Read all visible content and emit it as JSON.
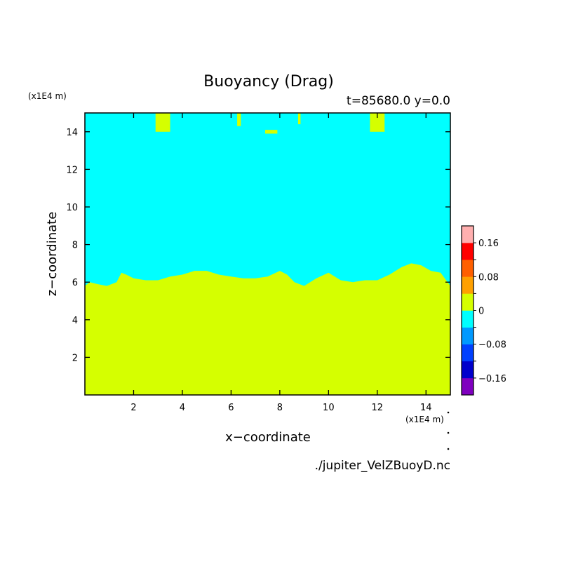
{
  "chart_data": {
    "type": "heatmap",
    "title": "Buoyancy (Drag)",
    "subtitle": "t=85680.0 y=0.0",
    "xlabel": "x−coordinate",
    "ylabel": "z−coordinate",
    "x_unit": "(x1E4 m)",
    "z_unit": "(x1E4 m)",
    "source_file": "./jupiter_VelZBuoyD.nc",
    "xlim": [
      0,
      15
    ],
    "ylim": [
      0,
      15
    ],
    "x_ticks": [
      2,
      4,
      6,
      8,
      10,
      12,
      14
    ],
    "y_ticks": [
      2,
      4,
      6,
      8,
      10,
      12,
      14
    ],
    "grid": false,
    "legend_position": "right",
    "colorbar": {
      "levels": [
        -0.2,
        -0.16,
        -0.12,
        -0.08,
        -0.04,
        0,
        0.04,
        0.08,
        0.12,
        0.16,
        0.2
      ],
      "colors": [
        "#7f00bf",
        "#0000cc",
        "#0040ff",
        "#0099ff",
        "#00ffff",
        "#d5ff00",
        "#ffa000",
        "#ff5f00",
        "#ff0000",
        "#ffafaf"
      ],
      "tick_labels": [
        "−0.16",
        "−0.08",
        "0",
        "0.08",
        "0.16"
      ],
      "tick_values": [
        -0.16,
        -0.08,
        0,
        0.08,
        0.16
      ]
    },
    "background_region": {
      "label": "-0.04 to 0",
      "color": "#00ffff",
      "z_range": [
        6,
        15
      ]
    },
    "lower_region": {
      "label": "0 to 0.04",
      "color": "#d5ff00"
    },
    "boundary": {
      "x": [
        0,
        0.2,
        0.5,
        0.9,
        1.3,
        1.5,
        1.7,
        2.0,
        2.5,
        3.0,
        3.5,
        4.0,
        4.5,
        5.0,
        5.5,
        6.0,
        6.5,
        7.0,
        7.5,
        8.0,
        8.3,
        8.6,
        9.0,
        9.5,
        10.0,
        10.5,
        11.0,
        11.5,
        12.0,
        12.5,
        13.0,
        13.4,
        13.8,
        14.2,
        14.6,
        15.0
      ],
      "z": [
        5.8,
        6.0,
        5.9,
        5.8,
        6.0,
        6.5,
        6.4,
        6.2,
        6.1,
        6.1,
        6.3,
        6.4,
        6.6,
        6.6,
        6.4,
        6.3,
        6.2,
        6.2,
        6.3,
        6.6,
        6.4,
        6.0,
        5.8,
        6.2,
        6.5,
        6.1,
        6.0,
        6.1,
        6.1,
        6.4,
        6.8,
        7.0,
        6.9,
        6.6,
        6.5,
        5.8
      ]
    },
    "top_patches": [
      {
        "x0": 2.9,
        "x1": 3.5,
        "z0": 14.0,
        "z1": 15.0
      },
      {
        "x0": 6.25,
        "x1": 6.4,
        "z0": 14.3,
        "z1": 15.0
      },
      {
        "x0": 7.4,
        "x1": 7.9,
        "z0": 13.9,
        "z1": 14.1
      },
      {
        "x0": 8.75,
        "x1": 8.85,
        "z0": 14.4,
        "z1": 15.0
      },
      {
        "x0": 11.7,
        "x1": 12.3,
        "z0": 14.0,
        "z1": 15.0
      }
    ]
  }
}
